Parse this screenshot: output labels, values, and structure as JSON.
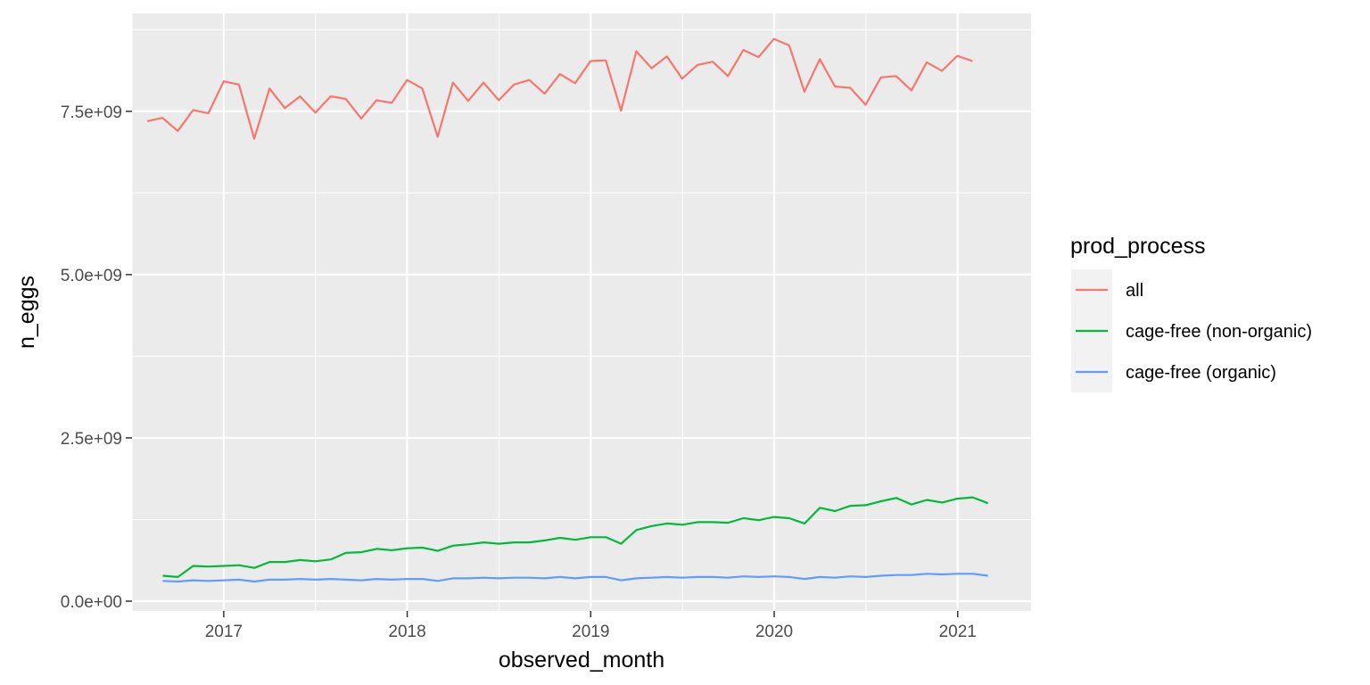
{
  "chart_data": {
    "type": "line",
    "xlabel": "observed_month",
    "ylabel": "n_eggs",
    "xlim": [
      2016.5,
      2021.4
    ],
    "ylim": [
      -150000000,
      9000000000
    ],
    "x_ticks": [
      2017,
      2018,
      2019,
      2020,
      2021
    ],
    "x_tick_labels": [
      "2017",
      "2018",
      "2019",
      "2020",
      "2021"
    ],
    "y_ticks": [
      0,
      2500000000,
      5000000000,
      7500000000
    ],
    "y_tick_labels": [
      "0.0e+00",
      "2.5e+09",
      "5.0e+09",
      "7.5e+09"
    ],
    "grid": true,
    "legend": {
      "title": "prod_process",
      "position": "right",
      "entries": [
        "all",
        "cage-free (non-organic)",
        "cage-free (organic)"
      ]
    },
    "series": [
      {
        "name": "all",
        "color": "#F8766D",
        "x_start": 2016.583,
        "x_step": 0.0833,
        "values": [
          7350000000,
          7400000000,
          7200000000,
          7520000000,
          7470000000,
          7960000000,
          7910000000,
          7080000000,
          7850000000,
          7550000000,
          7730000000,
          7480000000,
          7730000000,
          7690000000,
          7390000000,
          7670000000,
          7630000000,
          7980000000,
          7850000000,
          7110000000,
          7940000000,
          7660000000,
          7940000000,
          7670000000,
          7910000000,
          7980000000,
          7770000000,
          8070000000,
          7930000000,
          8270000000,
          8280000000,
          7510000000,
          8420000000,
          8160000000,
          8340000000,
          8000000000,
          8210000000,
          8260000000,
          8040000000,
          8440000000,
          8330000000,
          8610000000,
          8510000000,
          7800000000,
          8300000000,
          7880000000,
          7860000000,
          7600000000,
          8020000000,
          8040000000,
          7820000000,
          8250000000,
          8120000000,
          8350000000,
          8270000000
        ]
      },
      {
        "name": "cage-free (non-organic)",
        "color": "#00BA38",
        "x_start": 2016.667,
        "x_step": 0.0833,
        "values": [
          390000000,
          370000000,
          540000000,
          530000000,
          540000000,
          550000000,
          510000000,
          600000000,
          600000000,
          630000000,
          610000000,
          640000000,
          740000000,
          750000000,
          800000000,
          780000000,
          810000000,
          820000000,
          770000000,
          850000000,
          870000000,
          900000000,
          880000000,
          900000000,
          900000000,
          930000000,
          970000000,
          940000000,
          980000000,
          980000000,
          880000000,
          1090000000,
          1150000000,
          1190000000,
          1170000000,
          1210000000,
          1210000000,
          1200000000,
          1270000000,
          1240000000,
          1290000000,
          1270000000,
          1190000000,
          1430000000,
          1380000000,
          1460000000,
          1470000000,
          1530000000,
          1580000000,
          1480000000,
          1550000000,
          1510000000,
          1570000000,
          1590000000,
          1500000000
        ]
      },
      {
        "name": "cage-free (organic)",
        "color": "#619CFF",
        "x_start": 2016.667,
        "x_step": 0.0833,
        "values": [
          310000000,
          300000000,
          320000000,
          310000000,
          320000000,
          330000000,
          300000000,
          330000000,
          330000000,
          340000000,
          330000000,
          340000000,
          330000000,
          320000000,
          340000000,
          330000000,
          340000000,
          340000000,
          310000000,
          350000000,
          350000000,
          360000000,
          350000000,
          360000000,
          360000000,
          350000000,
          370000000,
          350000000,
          370000000,
          370000000,
          320000000,
          350000000,
          360000000,
          370000000,
          360000000,
          370000000,
          370000000,
          360000000,
          380000000,
          370000000,
          380000000,
          370000000,
          340000000,
          370000000,
          360000000,
          380000000,
          370000000,
          390000000,
          400000000,
          400000000,
          420000000,
          410000000,
          420000000,
          420000000,
          390000000
        ]
      }
    ]
  }
}
